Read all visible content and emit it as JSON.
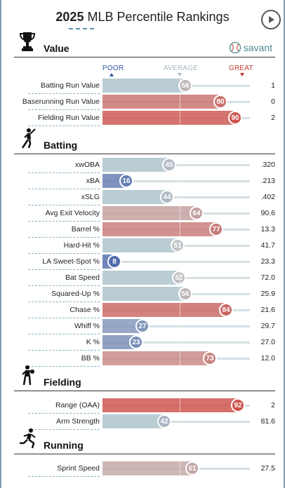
{
  "header": {
    "year": "2025",
    "title": "MLB Percentile Rankings"
  },
  "brand": {
    "label": "savant"
  },
  "scale": {
    "poor": "POOR",
    "average": "AVERAGE",
    "great": "GREAT"
  },
  "sections": {
    "value": {
      "title": "Value",
      "rows": [
        {
          "label": "Batting Run Value",
          "percentile": 56,
          "value": "1"
        },
        {
          "label": "Baserunning Run Value",
          "percentile": 80,
          "value": "0"
        },
        {
          "label": "Fielding Run Value",
          "percentile": 90,
          "value": "2"
        }
      ]
    },
    "batting": {
      "title": "Batting",
      "rows": [
        {
          "label": "xwOBA",
          "percentile": 45,
          "value": ".320"
        },
        {
          "label": "xBA",
          "percentile": 16,
          "value": ".213"
        },
        {
          "label": "xSLG",
          "percentile": 44,
          "value": ".402"
        },
        {
          "label": "Avg Exit Velocity",
          "percentile": 64,
          "value": "90.6"
        },
        {
          "label": "Barrel %",
          "percentile": 77,
          "value": "13.3"
        },
        {
          "label": "Hard-Hit %",
          "percentile": 51,
          "value": "41.7"
        },
        {
          "label": "LA Sweet-Spot %",
          "percentile": 8,
          "value": "23.3"
        },
        {
          "label": "Bat Speed",
          "percentile": 52,
          "value": "72.0"
        },
        {
          "label": "Squared-Up %",
          "percentile": 56,
          "value": "25.9"
        },
        {
          "label": "Chase %",
          "percentile": 84,
          "value": "21.6"
        },
        {
          "label": "Whiff %",
          "percentile": 27,
          "value": "29.7"
        },
        {
          "label": "K %",
          "percentile": 23,
          "value": "27.0"
        },
        {
          "label": "BB %",
          "percentile": 73,
          "value": "12.0"
        }
      ]
    },
    "fielding": {
      "title": "Fielding",
      "rows": [
        {
          "label": "Range (OAA)",
          "percentile": 92,
          "value": "2"
        },
        {
          "label": "Arm Strength",
          "percentile": 42,
          "value": "81.6"
        }
      ]
    },
    "running": {
      "title": "Running",
      "rows": [
        {
          "label": "Sprint Speed",
          "percentile": 61,
          "value": "27.5"
        }
      ]
    }
  },
  "colors": {
    "poor_scale": "#3a5ba8",
    "average_scale": "#9fbcc6",
    "great_scale": "#d13a31",
    "poor_label": "#2f5aa0",
    "average_label": "#a7b9c1",
    "great_label": "#c0392b",
    "frame": "#7f9db4"
  },
  "icons": {
    "value": "trophy-icon",
    "batting": "batter-icon",
    "fielding": "fielder-icon",
    "running": "runner-icon",
    "brand": "baseball-icon",
    "play": "play-icon"
  }
}
